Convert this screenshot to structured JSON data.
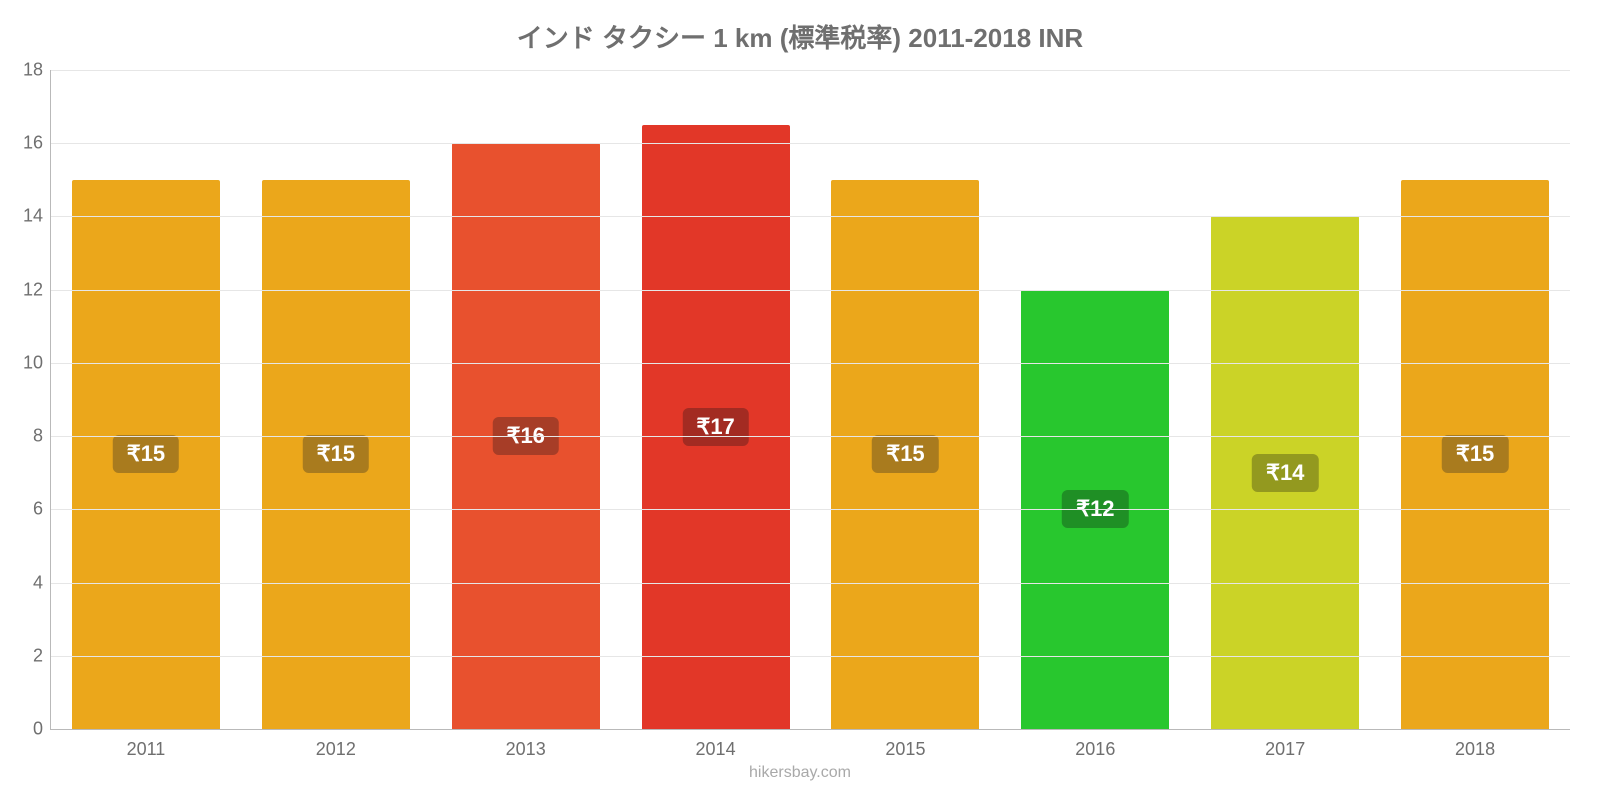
{
  "chart": {
    "type": "bar",
    "title": "インド タクシー 1 km (標準税率) 2011-2018 INR",
    "title_fontsize": 26,
    "title_color": "#6f6f6f",
    "source": "hikersbay.com",
    "source_fontsize": 16,
    "source_color": "#a9a9a9",
    "background_color": "#ffffff",
    "axis_color": "#b9b9b9",
    "grid_color": "#e6e6e6",
    "tick_label_color": "#6f6f6f",
    "tick_label_fontsize": 18,
    "ylim": [
      0,
      18
    ],
    "ytick_step": 2,
    "yticks": [
      "0",
      "2",
      "4",
      "6",
      "8",
      "10",
      "12",
      "14",
      "16",
      "18"
    ],
    "bar_width_ratio": 0.78,
    "bar_label_fontsize": 22,
    "bar_label_text_color": "#ffffff",
    "categories": [
      "2011",
      "2012",
      "2013",
      "2014",
      "2015",
      "2016",
      "2017",
      "2018"
    ],
    "values": [
      15,
      15,
      16,
      16.5,
      15,
      12,
      14,
      15
    ],
    "value_labels": [
      "₹15",
      "₹15",
      "₹16",
      "₹17",
      "₹15",
      "₹12",
      "₹14",
      "₹15"
    ],
    "bar_colors": [
      "#eba71b",
      "#eba71b",
      "#e8512e",
      "#e23728",
      "#eba71b",
      "#28c72e",
      "#cbd327",
      "#eba71b"
    ],
    "bar_label_bg_colors": [
      "#a97b1e",
      "#a97b1e",
      "#a73d27",
      "#a32b22",
      "#a97b1e",
      "#1f8f25",
      "#93991f",
      "#a97b1e"
    ]
  }
}
